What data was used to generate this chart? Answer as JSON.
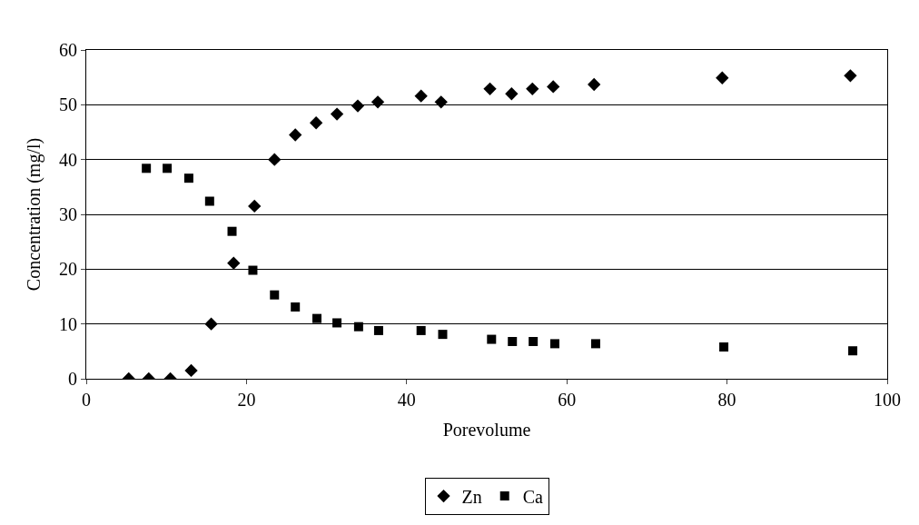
{
  "chart_data": {
    "type": "scatter",
    "xlabel": "Porevolume",
    "ylabel": "Concentration (mg/l)",
    "xlim": [
      0,
      100
    ],
    "xticks": [
      0,
      20,
      40,
      60,
      80,
      100
    ],
    "ylim": [
      0,
      60
    ],
    "yticks": [
      0,
      10,
      20,
      30,
      40,
      50,
      60
    ],
    "grid": "y",
    "legend": "bottom",
    "series": [
      {
        "name": "Zn",
        "color": "#000000",
        "marker": "diamond",
        "x": [
          5.3,
          7.8,
          10.5,
          13.1,
          15.6,
          18.4,
          21.0,
          23.5,
          26.1,
          28.7,
          31.3,
          33.9,
          36.4,
          41.8,
          44.3,
          50.4,
          53.1,
          55.7,
          58.3,
          63.4,
          79.4,
          95.4
        ],
        "values": [
          0,
          0,
          0,
          1.5,
          10,
          21.1,
          31.5,
          40,
          44.5,
          46.7,
          48.3,
          49.8,
          50.5,
          51.6,
          50.5,
          52.9,
          52.0,
          52.9,
          53.3,
          53.7,
          54.9,
          55.3
        ]
      },
      {
        "name": "Ca",
        "color": "#000000",
        "marker": "square",
        "x": [
          7.5,
          10.1,
          12.8,
          15.4,
          18.2,
          20.8,
          23.5,
          26.1,
          28.8,
          31.3,
          34.0,
          36.5,
          41.8,
          44.5,
          50.6,
          53.2,
          55.8,
          58.5,
          63.6,
          79.6,
          95.7
        ],
        "values": [
          38.4,
          38.4,
          36.6,
          32.4,
          26.9,
          19.8,
          15.3,
          13.1,
          11.0,
          10.2,
          9.5,
          8.8,
          8.8,
          8.1,
          7.2,
          6.8,
          6.8,
          6.4,
          6.4,
          5.8,
          5.1
        ]
      }
    ]
  }
}
